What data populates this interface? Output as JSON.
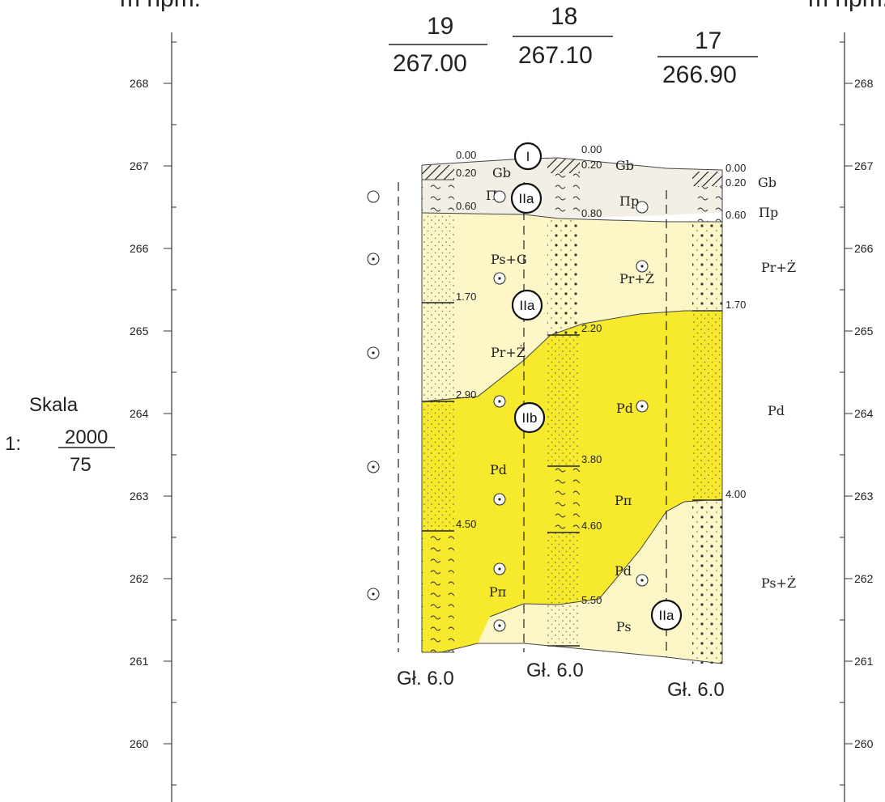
{
  "header": {
    "left_unit": "m npm.",
    "right_unit": "m npm."
  },
  "scale": {
    "label": "Skala",
    "prefix": "1:",
    "numerator": "2000",
    "denominator": "75"
  },
  "axis": {
    "left_ticks": [
      "268",
      "267",
      "266",
      "265",
      "264",
      "263",
      "262",
      "261",
      "260"
    ],
    "right_ticks": [
      "268",
      "267",
      "266",
      "265",
      "264",
      "263",
      "262",
      "261",
      "260"
    ]
  },
  "boreholes": [
    {
      "number": "19",
      "elevation": "267.00",
      "depth_label": "Gł. 6.0"
    },
    {
      "number": "18",
      "elevation": "267.10",
      "depth_label": "Gł. 6.0"
    },
    {
      "number": "17",
      "elevation": "266.90",
      "depth_label": "Gł. 6.0"
    }
  ],
  "depth_marks": {
    "b19": [
      "0.00",
      "0.20",
      "0.60",
      "1.70",
      "2.90",
      "4.50"
    ],
    "b18": [
      "0.00",
      "0.20",
      "0.80",
      "2.20",
      "3.80",
      "4.60",
      "5.50"
    ],
    "b17": [
      "0.00",
      "0.20",
      "0.60",
      "1.70",
      "4.00"
    ]
  },
  "soil_labels": {
    "b19": [
      "Gb",
      "Πp",
      "Ps+G",
      "Pr+Ż",
      "Pd",
      "Pπ"
    ],
    "b18": [
      "Gb",
      "Πp",
      "Pr+Ż",
      "Pd",
      "Pπ",
      "Pd",
      "Ps"
    ],
    "b17": [
      "Gb",
      "Πp",
      "Pr+Ż",
      "Pd",
      "Ps+Ż"
    ]
  },
  "geotech_units": [
    "I",
    "IIa",
    "IIa",
    "IIb",
    "IIa"
  ],
  "colors": {
    "pale_yellow": "#fdf7c8",
    "yellow": "#f7ea2c",
    "fill_band": "#f3efe6",
    "bg": "#ffffff"
  }
}
